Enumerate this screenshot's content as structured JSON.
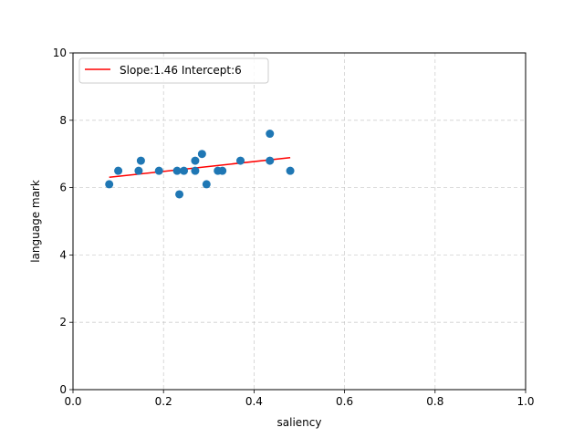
{
  "chart_data": {
    "type": "scatter",
    "title": "",
    "xlabel": "saliency",
    "ylabel": "language mark",
    "xlim": [
      0.0,
      1.0
    ],
    "ylim": [
      0,
      10
    ],
    "xticks": [
      0.0,
      0.2,
      0.4,
      0.6,
      0.8,
      1.0
    ],
    "xtick_labels": [
      "0.0",
      "0.2",
      "0.4",
      "0.6",
      "0.8",
      "1.0"
    ],
    "yticks": [
      0,
      2,
      4,
      6,
      8,
      10
    ],
    "ytick_labels": [
      "0",
      "2",
      "4",
      "6",
      "8",
      "10"
    ],
    "grid": true,
    "legend_position": "top-left",
    "points": {
      "color": "#1f77b4",
      "x": [
        0.08,
        0.1,
        0.145,
        0.15,
        0.19,
        0.23,
        0.235,
        0.245,
        0.27,
        0.27,
        0.285,
        0.295,
        0.32,
        0.33,
        0.37,
        0.435,
        0.435,
        0.48
      ],
      "y": [
        6.1,
        6.5,
        6.5,
        6.8,
        6.5,
        6.5,
        5.8,
        6.5,
        6.5,
        6.8,
        7.0,
        6.1,
        6.5,
        6.5,
        6.8,
        7.6,
        6.8,
        6.5
      ]
    },
    "fit_line": {
      "label": "Slope:1.46 Intercept:6",
      "color": "#ff0000",
      "slope": 1.46,
      "intercept": 6.19,
      "x_range": [
        0.08,
        0.48
      ]
    }
  }
}
